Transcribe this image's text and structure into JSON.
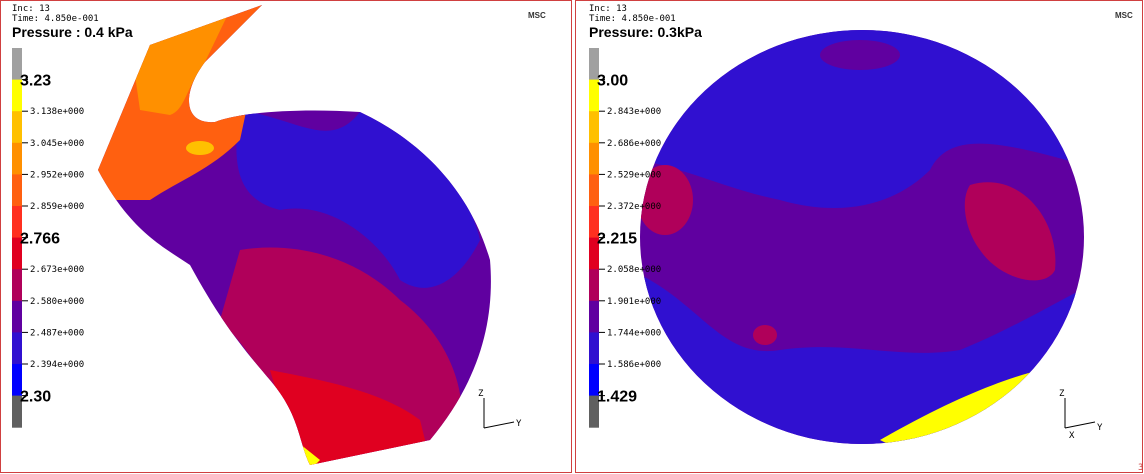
{
  "colorbar_colors": [
    "#a0a0a0",
    "#ffff00",
    "#ffc000",
    "#ff9000",
    "#ff6010",
    "#ff3020",
    "#e00020",
    "#b0005a",
    "#6000a0",
    "#3010d0",
    "#0000ff",
    "#606060"
  ],
  "panels": [
    {
      "inc": "Inc:   13",
      "time": "Time:  4.850e-001",
      "title": "Pressure : 0.4 kPa",
      "logo": "MSC",
      "legend": [
        "3.23",
        "3.138e+000",
        "3.045e+000",
        "2.952e+000",
        "2.859e+000",
        "2.766",
        "2.673e+000",
        "2.580e+000",
        "2.487e+000",
        "2.394e+000",
        "2.30"
      ],
      "triad": [
        "Z",
        "Y"
      ]
    },
    {
      "inc": "Inc:   13",
      "time": "Time:  4.850e-001",
      "title": "Pressure:  0.3kPa",
      "logo": "MSC",
      "legend": [
        "3.00",
        "2.843e+000",
        "2.686e+000",
        "2.529e+000",
        "2.372e+000",
        "2.215",
        "2.058e+000",
        "1.901e+000",
        "1.744e+000",
        "1.586e+000",
        "1.429"
      ],
      "triad": [
        "Z",
        "X",
        "Y"
      ],
      "page_marker": "3"
    }
  ]
}
